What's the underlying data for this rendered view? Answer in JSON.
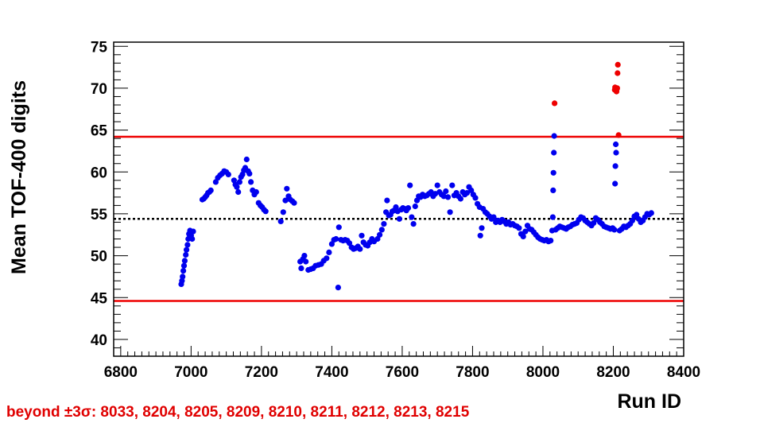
{
  "chart_data": {
    "type": "scatter",
    "title": "",
    "xlabel": "Run ID",
    "ylabel": "Mean TOF-400 digits",
    "xlim": [
      6780,
      8400
    ],
    "ylim": [
      38,
      75.5
    ],
    "xticks": [
      6800,
      7000,
      7200,
      7400,
      7600,
      7800,
      8000,
      8200,
      8400
    ],
    "yticks": [
      40,
      45,
      50,
      55,
      60,
      65,
      70,
      75
    ],
    "grid": false,
    "legend": "none",
    "mean_line": 54.4,
    "upper_limit": 64.2,
    "lower_limit": 44.6,
    "colors": {
      "normal": "#0000ee",
      "outlier": "#ee0000",
      "limit": "#ee0000",
      "mean": "#000000"
    },
    "series": [
      {
        "points": [
          [
            6972,
            46.6
          ],
          [
            6974,
            47.0
          ],
          [
            6976,
            47.5
          ],
          [
            6978,
            48.2
          ],
          [
            6980,
            48.8
          ],
          [
            6982,
            49.4
          ],
          [
            6985,
            50.1
          ],
          [
            6987,
            50.7
          ],
          [
            6990,
            51.3
          ],
          [
            6992,
            52.0
          ],
          [
            6994,
            52.6
          ],
          [
            6997,
            53.0
          ],
          [
            7000,
            52.4
          ],
          [
            7003,
            52.0
          ],
          [
            7006,
            52.9
          ],
          [
            7032,
            56.7
          ],
          [
            7036,
            56.8
          ],
          [
            7040,
            57.0
          ],
          [
            7044,
            57.2
          ],
          [
            7048,
            57.5
          ],
          [
            7052,
            57.6
          ],
          [
            7056,
            57.8
          ],
          [
            7070,
            58.8
          ],
          [
            7076,
            59.3
          ],
          [
            7082,
            59.6
          ],
          [
            7088,
            59.8
          ],
          [
            7094,
            60.1
          ],
          [
            7100,
            60.0
          ],
          [
            7106,
            59.7
          ],
          [
            7122,
            59.0
          ],
          [
            7126,
            58.5
          ],
          [
            7130,
            58.2
          ],
          [
            7134,
            57.6
          ],
          [
            7138,
            58.8
          ],
          [
            7142,
            59.4
          ],
          [
            7146,
            59.7
          ],
          [
            7150,
            60.2
          ],
          [
            7154,
            60.5
          ],
          [
            7158,
            61.5
          ],
          [
            7162,
            60.1
          ],
          [
            7166,
            59.8
          ],
          [
            7170,
            58.8
          ],
          [
            7175,
            57.8
          ],
          [
            7180,
            57.3
          ],
          [
            7185,
            57.6
          ],
          [
            7192,
            56.3
          ],
          [
            7197,
            56.0
          ],
          [
            7202,
            55.8
          ],
          [
            7207,
            55.5
          ],
          [
            7212,
            55.3
          ],
          [
            7255,
            54.1
          ],
          [
            7262,
            55.2
          ],
          [
            7268,
            56.6
          ],
          [
            7272,
            58.0
          ],
          [
            7277,
            57.1
          ],
          [
            7282,
            56.7
          ],
          [
            7288,
            56.5
          ],
          [
            7293,
            56.3
          ],
          [
            7310,
            49.3
          ],
          [
            7313,
            48.5
          ],
          [
            7318,
            49.6
          ],
          [
            7322,
            50.0
          ],
          [
            7326,
            49.3
          ],
          [
            7333,
            48.3
          ],
          [
            7340,
            48.4
          ],
          [
            7347,
            48.5
          ],
          [
            7354,
            48.8
          ],
          [
            7362,
            48.9
          ],
          [
            7370,
            49.0
          ],
          [
            7377,
            49.4
          ],
          [
            7385,
            49.7
          ],
          [
            7392,
            50.4
          ],
          [
            7400,
            51.4
          ],
          [
            7406,
            51.9
          ],
          [
            7412,
            52.0
          ],
          [
            7418,
            46.2
          ],
          [
            7420,
            53.4
          ],
          [
            7426,
            51.9
          ],
          [
            7432,
            51.8
          ],
          [
            7438,
            51.9
          ],
          [
            7444,
            51.8
          ],
          [
            7450,
            51.5
          ],
          [
            7456,
            51.0
          ],
          [
            7462,
            50.8
          ],
          [
            7468,
            50.9
          ],
          [
            7474,
            51.1
          ],
          [
            7480,
            50.8
          ],
          [
            7485,
            52.4
          ],
          [
            7490,
            51.6
          ],
          [
            7496,
            51.3
          ],
          [
            7502,
            51.2
          ],
          [
            7508,
            51.6
          ],
          [
            7514,
            52.0
          ],
          [
            7520,
            51.7
          ],
          [
            7530,
            52.0
          ],
          [
            7536,
            52.5
          ],
          [
            7542,
            53.1
          ],
          [
            7548,
            53.8
          ],
          [
            7554,
            55.2
          ],
          [
            7557,
            56.6
          ],
          [
            7562,
            54.8
          ],
          [
            7567,
            54.9
          ],
          [
            7572,
            55.3
          ],
          [
            7577,
            55.4
          ],
          [
            7582,
            55.8
          ],
          [
            7587,
            55.3
          ],
          [
            7592,
            54.4
          ],
          [
            7597,
            55.5
          ],
          [
            7602,
            55.7
          ],
          [
            7607,
            55.6
          ],
          [
            7612,
            55.4
          ],
          [
            7617,
            55.7
          ],
          [
            7622,
            58.4
          ],
          [
            7627,
            54.6
          ],
          [
            7632,
            53.8
          ],
          [
            7637,
            55.9
          ],
          [
            7642,
            56.6
          ],
          [
            7647,
            57.1
          ],
          [
            7652,
            57.0
          ],
          [
            7658,
            57.3
          ],
          [
            7664,
            57.1
          ],
          [
            7670,
            57.2
          ],
          [
            7676,
            57.4
          ],
          [
            7682,
            57.6
          ],
          [
            7688,
            57.1
          ],
          [
            7694,
            57.4
          ],
          [
            7700,
            58.4
          ],
          [
            7706,
            57.6
          ],
          [
            7712,
            57.3
          ],
          [
            7718,
            57.1
          ],
          [
            7724,
            57.7
          ],
          [
            7730,
            57.0
          ],
          [
            7736,
            55.2
          ],
          [
            7742,
            58.4
          ],
          [
            7748,
            57.2
          ],
          [
            7754,
            57.5
          ],
          [
            7760,
            57.1
          ],
          [
            7766,
            56.8
          ],
          [
            7772,
            57.6
          ],
          [
            7778,
            57.3
          ],
          [
            7784,
            57.5
          ],
          [
            7790,
            58.2
          ],
          [
            7796,
            57.8
          ],
          [
            7802,
            57.3
          ],
          [
            7808,
            56.9
          ],
          [
            7814,
            56.2
          ],
          [
            7820,
            55.8
          ],
          [
            7822,
            52.4
          ],
          [
            7826,
            53.3
          ],
          [
            7830,
            55.6
          ],
          [
            7836,
            55.2
          ],
          [
            7842,
            55.0
          ],
          [
            7848,
            54.7
          ],
          [
            7854,
            54.4
          ],
          [
            7860,
            54.6
          ],
          [
            7866,
            54.0
          ],
          [
            7872,
            54.2
          ],
          [
            7878,
            54.0
          ],
          [
            7884,
            54.3
          ],
          [
            7890,
            54.1
          ],
          [
            7896,
            53.8
          ],
          [
            7902,
            54.0
          ],
          [
            7908,
            53.7
          ],
          [
            7914,
            53.8
          ],
          [
            7920,
            53.6
          ],
          [
            7926,
            53.5
          ],
          [
            7932,
            53.3
          ],
          [
            7938,
            52.6
          ],
          [
            7944,
            52.3
          ],
          [
            7950,
            52.9
          ],
          [
            7956,
            53.6
          ],
          [
            7962,
            53.2
          ],
          [
            7968,
            53.1
          ],
          [
            7974,
            52.8
          ],
          [
            7980,
            52.5
          ],
          [
            7986,
            52.2
          ],
          [
            7992,
            52.0
          ],
          [
            7998,
            51.9
          ],
          [
            8004,
            51.8
          ],
          [
            8010,
            51.9
          ],
          [
            8016,
            51.7
          ],
          [
            8022,
            51.8
          ],
          [
            8026,
            53.0
          ],
          [
            8028,
            54.6
          ],
          [
            8029,
            57.8
          ],
          [
            8030,
            59.9
          ],
          [
            8031,
            62.3
          ],
          [
            8032,
            64.3
          ],
          [
            8036,
            53.1
          ],
          [
            8042,
            53.3
          ],
          [
            8048,
            53.5
          ],
          [
            8054,
            53.4
          ],
          [
            8060,
            53.3
          ],
          [
            8066,
            53.2
          ],
          [
            8072,
            53.4
          ],
          [
            8078,
            53.5
          ],
          [
            8084,
            53.7
          ],
          [
            8090,
            53.8
          ],
          [
            8096,
            53.9
          ],
          [
            8102,
            54.3
          ],
          [
            8108,
            54.6
          ],
          [
            8114,
            54.5
          ],
          [
            8120,
            54.2
          ],
          [
            8126,
            54.0
          ],
          [
            8132,
            53.8
          ],
          [
            8138,
            53.6
          ],
          [
            8144,
            53.9
          ],
          [
            8150,
            54.5
          ],
          [
            8156,
            54.3
          ],
          [
            8162,
            54.0
          ],
          [
            8168,
            53.8
          ],
          [
            8174,
            53.5
          ],
          [
            8180,
            53.4
          ],
          [
            8186,
            53.3
          ],
          [
            8192,
            53.2
          ],
          [
            8198,
            53.3
          ],
          [
            8203,
            53.1
          ],
          [
            8205,
            58.6
          ],
          [
            8206,
            60.7
          ],
          [
            8207,
            63.3
          ],
          [
            8208,
            62.3
          ],
          [
            8218,
            53.0
          ],
          [
            8224,
            53.2
          ],
          [
            8230,
            53.5
          ],
          [
            8236,
            53.4
          ],
          [
            8242,
            53.6
          ],
          [
            8248,
            53.8
          ],
          [
            8254,
            54.2
          ],
          [
            8260,
            54.7
          ],
          [
            8266,
            54.9
          ],
          [
            8272,
            54.4
          ],
          [
            8278,
            54.0
          ],
          [
            8284,
            54.2
          ],
          [
            8290,
            54.6
          ],
          [
            8296,
            55.0
          ],
          [
            8302,
            54.9
          ],
          [
            8308,
            55.1
          ]
        ]
      },
      {
        "points": [
          [
            8033,
            68.2
          ],
          [
            8204,
            69.8
          ],
          [
            8205,
            70.1
          ],
          [
            8209,
            69.6
          ],
          [
            8210,
            69.9
          ],
          [
            8211,
            70.0
          ],
          [
            8212,
            71.8
          ],
          [
            8213,
            72.8
          ],
          [
            8215,
            64.4
          ]
        ]
      }
    ],
    "annotation": "beyond  ±3σ: 8033, 8204, 8205, 8209, 8210, 8211, 8212, 8213, 8215"
  }
}
